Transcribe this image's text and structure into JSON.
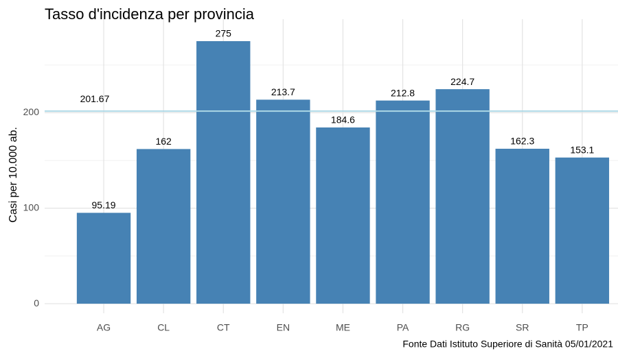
{
  "chart_data": {
    "type": "bar",
    "title": "Tasso d'incidenza per provincia",
    "ylabel": "Casi per 10.000 ab.",
    "caption": "Fonte Dati Istituto Superiore di Sanità 05/01/2021",
    "categories": [
      "AG",
      "CL",
      "CT",
      "EN",
      "ME",
      "PA",
      "RG",
      "SR",
      "TP"
    ],
    "values": [
      95.19,
      162,
      275,
      213.7,
      184.6,
      212.8,
      224.7,
      162.3,
      153.1
    ],
    "color": "#4682b4",
    "ylim": [
      -10,
      298
    ],
    "yticks": [
      0,
      100,
      200
    ],
    "y_minor_grid": [
      50,
      150,
      250
    ],
    "grid": true,
    "reference_line": {
      "value": 201.67,
      "label": "201.67",
      "color": "#add8e6"
    }
  }
}
